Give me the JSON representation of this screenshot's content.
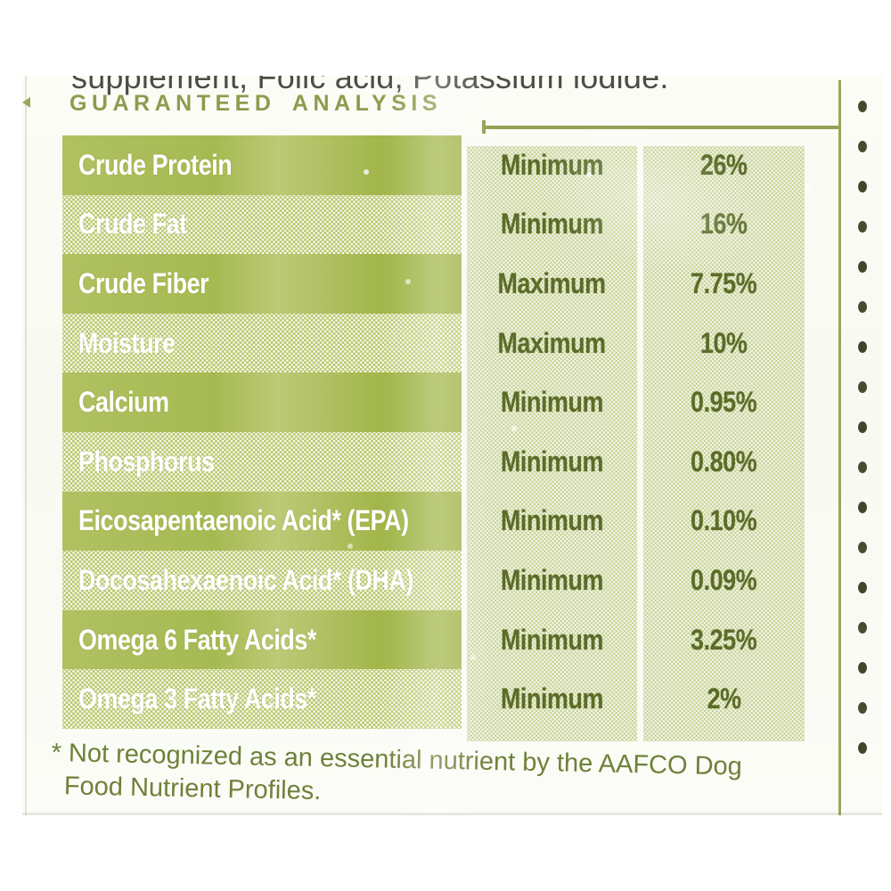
{
  "label": {
    "ingredients_fragment": "supplement, Folic acid, Potassium iodide.",
    "section_heading": "GUARANTEED ANALYSIS"
  },
  "table": {
    "rows": [
      {
        "nutrient": "Crude Protein",
        "basis": "Minimum",
        "value": "26%"
      },
      {
        "nutrient": "Crude Fat",
        "basis": "Minimum",
        "value": "16%"
      },
      {
        "nutrient": "Crude Fiber",
        "basis": "Maximum",
        "value": "7.75%"
      },
      {
        "nutrient": "Moisture",
        "basis": "Maximum",
        "value": "10%"
      },
      {
        "nutrient": "Calcium",
        "basis": "Minimum",
        "value": "0.95%"
      },
      {
        "nutrient": "Phosphorus",
        "basis": "Minimum",
        "value": "0.80%"
      },
      {
        "nutrient": "Eicosapentaenoic Acid* (EPA)",
        "basis": "Minimum",
        "value": "0.10%"
      },
      {
        "nutrient": "Docosahexaenoic Acid* (DHA)",
        "basis": "Minimum",
        "value": "0.09%"
      },
      {
        "nutrient": "Omega 6 Fatty Acids*",
        "basis": "Minimum",
        "value": "3.25%"
      },
      {
        "nutrient": "Omega 3 Fatty Acids*",
        "basis": "Minimum",
        "value": "2%"
      }
    ]
  },
  "footnote": {
    "lines": [
      "* Not recognized as an essential nutrient by the AAFCO Dog",
      "Food Nutrient Profiles."
    ]
  },
  "colors": {
    "band_green": "#a9bb55",
    "band_green_light": "#c6d285",
    "column_background": "#e9ecd4",
    "row_text_white": "#ffffff",
    "value_text_green": "#5b6c28",
    "heading_green": "#8d9c4e",
    "footnote_green": "#70803a",
    "ingredient_text_gray": "#4e4c47"
  }
}
